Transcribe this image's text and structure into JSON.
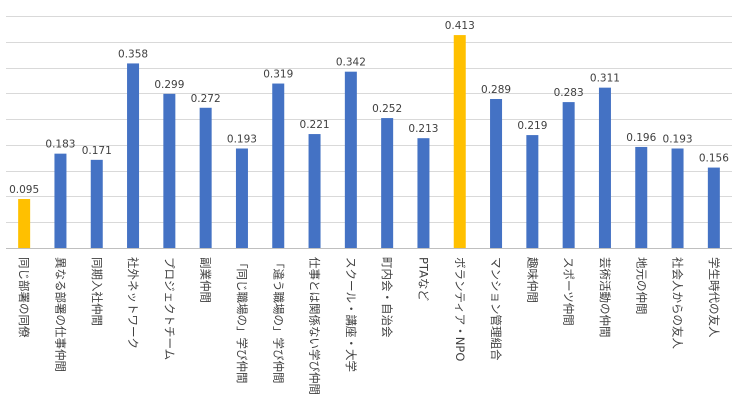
{
  "chart_data": {
    "type": "bar",
    "title": "",
    "xlabel": "",
    "ylabel": "",
    "ylim": [
      0,
      0.45
    ],
    "grid": true,
    "legend": "none",
    "colors": {
      "default": "#4472C4",
      "highlight": "#FFC000"
    },
    "categories": [
      "同じ部署の同僚",
      "異なる部署の仕事仲間",
      "同期入社仲間",
      "社外ネットワーク",
      "プロジェクトチーム",
      "副業仲間",
      "「同じ職場の」学び仲間",
      "「違う職場の」学び仲間",
      "仕事とは関係ない学び仲間",
      "スクール・講座・大学",
      "町内会・自治会",
      "PTAなど",
      "ボランティア・NPO",
      "マンション管理組合",
      "趣味仲間",
      "スポーツ仲間",
      "芸術活動の仲間",
      "地元の仲間",
      "社会人からの友人",
      "学生時代の友人"
    ],
    "values": [
      0.095,
      0.183,
      0.171,
      0.358,
      0.299,
      0.272,
      0.193,
      0.319,
      0.221,
      0.342,
      0.252,
      0.213,
      0.413,
      0.289,
      0.219,
      0.283,
      0.311,
      0.196,
      0.193,
      0.156
    ],
    "value_labels": [
      "0.095",
      "0.183",
      "0.171",
      "0.358",
      "0.299",
      "0.272",
      "0.193",
      "0.319",
      "0.221",
      "0.342",
      "0.252",
      "0.213",
      "0.413",
      "0.289",
      "0.219",
      "0.283",
      "0.311",
      "0.196",
      "0.193",
      "0.156"
    ],
    "highlighted": [
      0,
      12
    ]
  }
}
